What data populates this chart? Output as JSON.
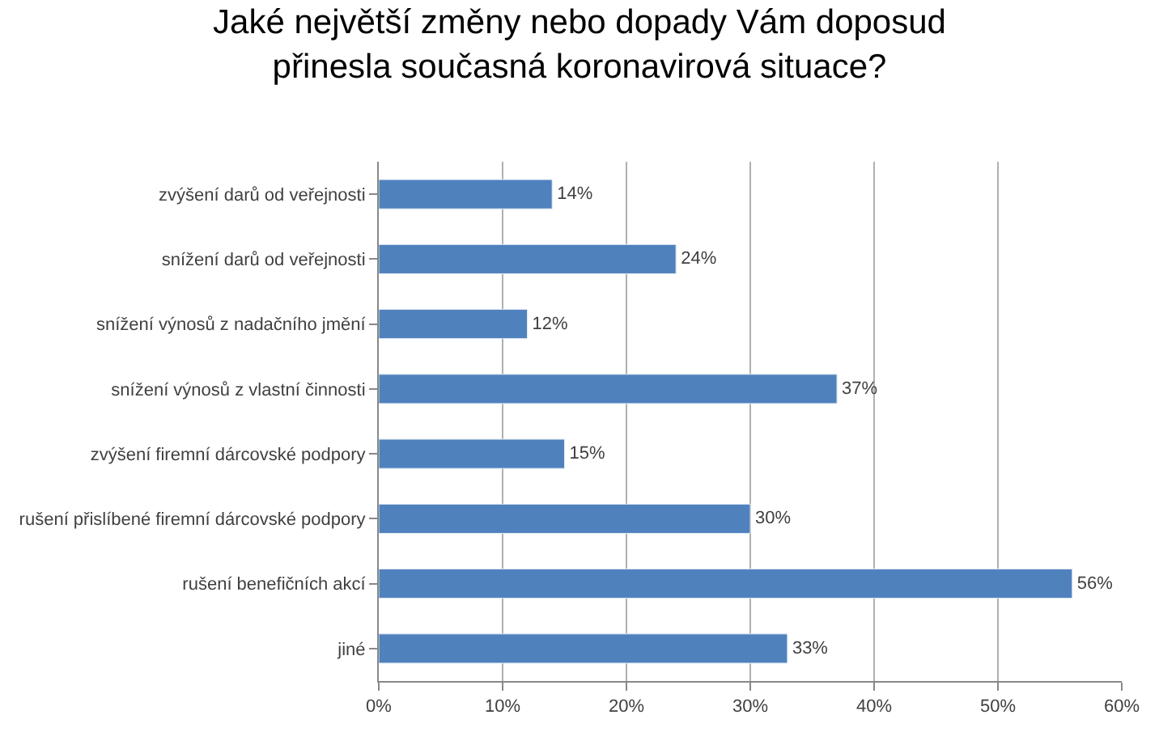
{
  "chart_data": {
    "type": "bar",
    "orientation": "horizontal",
    "title": "Jaké největší změny nebo dopady Vám doposud\npřinesla současná koronavirová situace?",
    "categories": [
      "zvýšení darů od veřejnosti",
      "snížení darů od veřejnosti",
      "snížení výnosů z nadačního jmění",
      "snížení výnosů z vlastní činnosti",
      "zvýšení firemní dárcovské podpory",
      "rušení přislíbené firemní dárcovské podpory",
      "rušení benefičních akcí",
      "jiné"
    ],
    "values": [
      14,
      24,
      12,
      37,
      15,
      30,
      56,
      33
    ],
    "value_labels": [
      "14%",
      "24%",
      "12%",
      "37%",
      "15%",
      "30%",
      "56%",
      "33%"
    ],
    "color": "#4f81bd",
    "xlim": [
      0,
      60
    ],
    "xticks": [
      {
        "value": 0,
        "label": "0%"
      },
      {
        "value": 10,
        "label": "10%"
      },
      {
        "value": 20,
        "label": "20%"
      },
      {
        "value": 30,
        "label": "30%"
      },
      {
        "value": 40,
        "label": "40%"
      },
      {
        "value": 50,
        "label": "50%"
      },
      {
        "value": 60,
        "label": "60%"
      }
    ],
    "grid": "x",
    "legend": false
  }
}
